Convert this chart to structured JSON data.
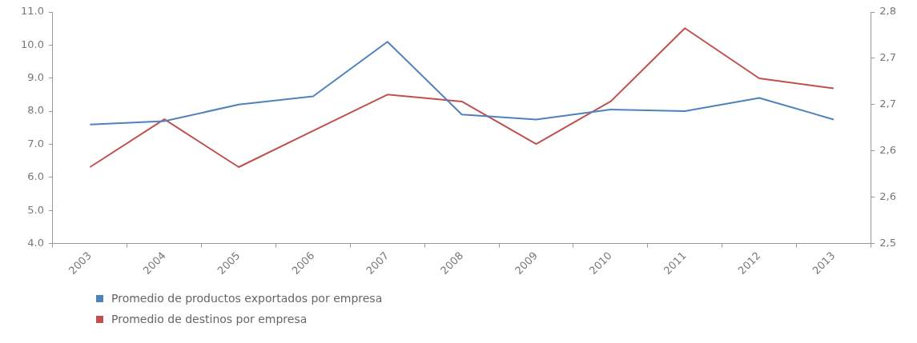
{
  "chart_data": {
    "type": "line",
    "categories": [
      "2003",
      "2004",
      "2005",
      "2006",
      "2007",
      "2008",
      "2009",
      "2010",
      "2011",
      "2012",
      "2013"
    ],
    "series": [
      {
        "name": "Promedio de productos exportados por empresa",
        "color": "#4f81bd",
        "values": [
          7.6,
          7.7,
          8.2,
          8.45,
          10.1,
          7.9,
          7.75,
          8.05,
          8.0,
          8.4,
          7.75
        ]
      },
      {
        "name": "Promedio de destinos por empresa",
        "color": "#c0504d",
        "axis": "y2",
        "values": [
          2.599,
          2.661,
          2.599,
          2.646,
          2.693,
          2.684,
          2.629,
          2.684,
          2.779,
          2.714,
          2.701
        ]
      }
    ],
    "ylim": [
      4,
      11
    ],
    "yticks": [
      {
        "value": 4,
        "label": "4.0"
      },
      {
        "value": 5,
        "label": "5.0"
      },
      {
        "value": 6,
        "label": "6.0"
      },
      {
        "value": 7,
        "label": "7.0"
      },
      {
        "value": 8,
        "label": "8.0"
      },
      {
        "value": 9,
        "label": "9.0"
      },
      {
        "value": 10,
        "label": "10.0"
      },
      {
        "value": 11,
        "label": "11.0"
      }
    ],
    "y2lim": [
      2.5,
      2.8
    ],
    "y2ticks": [
      {
        "value": 2.5,
        "label": "2,5"
      },
      {
        "value": 2.56,
        "label": "2,6"
      },
      {
        "value": 2.62,
        "label": "2,6"
      },
      {
        "value": 2.68,
        "label": "2,7"
      },
      {
        "value": 2.74,
        "label": "2,7"
      },
      {
        "value": 2.8,
        "label": "2,8"
      }
    ],
    "grid": false,
    "legend": "bottom left",
    "marker": "none",
    "line_style": "solid"
  }
}
